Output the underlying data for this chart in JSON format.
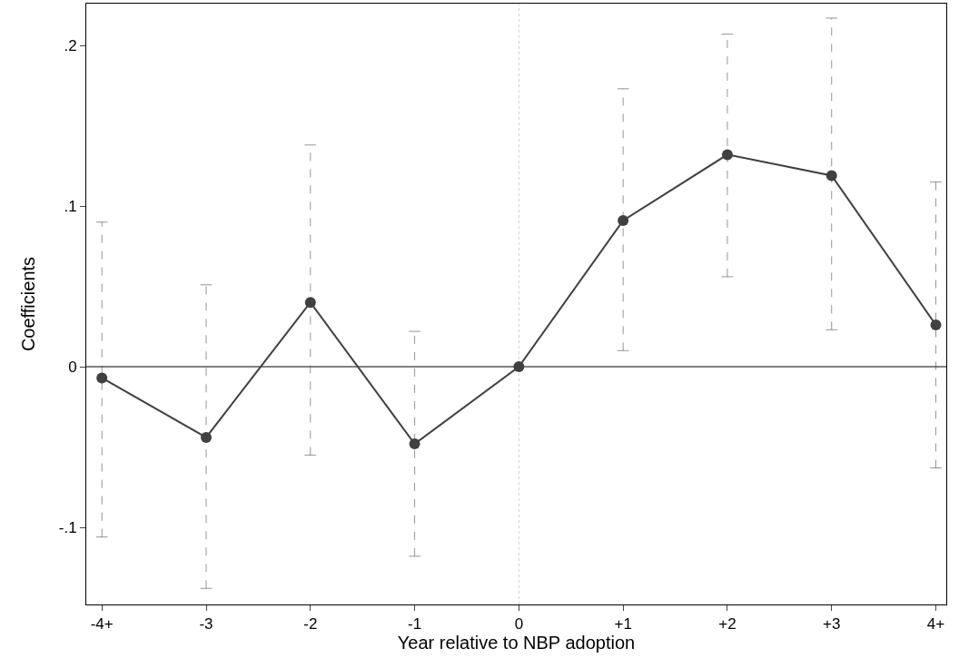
{
  "chart_data": {
    "type": "line",
    "xlabel": "Year relative to NBP adoption",
    "ylabel": "Coefficients",
    "categories": [
      "-4+",
      "-3",
      "-2",
      "-1",
      "0",
      "+1",
      "+2",
      "+3",
      "4+"
    ],
    "series": [
      {
        "color": "#404040",
        "values": [
          -0.007,
          -0.044,
          0.04,
          -0.048,
          0,
          0.091,
          0.132,
          0.119,
          0.026
        ],
        "errors": [
          [
            -0.106,
            0.09
          ],
          [
            -0.138,
            0.051
          ],
          [
            -0.055,
            0.138
          ],
          [
            -0.118,
            0.022
          ],
          null,
          [
            0.01,
            0.173
          ],
          [
            0.056,
            0.207
          ],
          [
            0.023,
            0.217
          ],
          [
            -0.063,
            0.115
          ]
        ]
      }
    ],
    "ylim": [
      -0.148,
      0.226
    ],
    "yticks": [
      {
        "value": -0.1,
        "label": "-.1"
      },
      0,
      {
        "value": 0.1,
        "label": ".1"
      },
      {
        "value": 0.2,
        "label": ".2"
      }
    ],
    "ref_lines": [
      {
        "axis": "y",
        "value": 0,
        "color": "#000000",
        "line_style": "solid"
      },
      {
        "axis": "x",
        "value": "0",
        "color": "#d0d0d0",
        "line_style": "dotted"
      }
    ],
    "marker": "circle",
    "line_style": "solid",
    "grid": false
  }
}
